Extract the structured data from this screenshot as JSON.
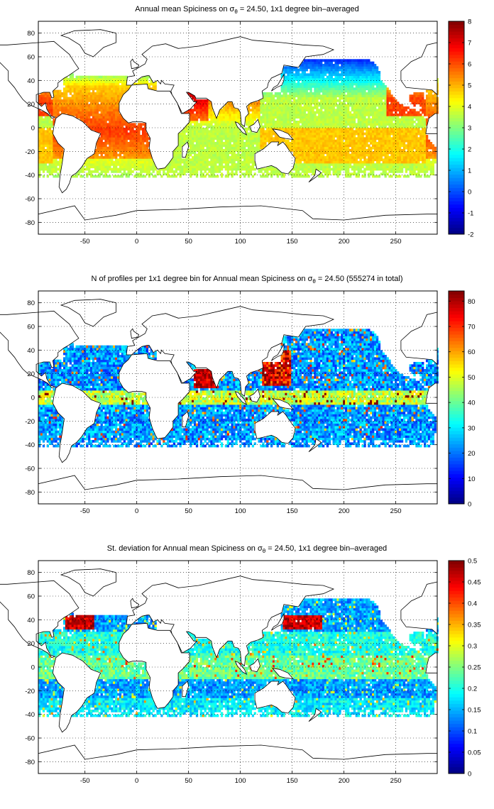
{
  "panels": [
    {
      "title_prefix": "Annual mean Spiciness on ",
      "sigma": "σ",
      "sigma_sub": "θ",
      "title_suffix": " = 24.50, 1x1 degree bin–averaged",
      "field": "spice",
      "colorbar": {
        "min": -2,
        "max": 8,
        "ticks": [
          "-2",
          "-1",
          "0",
          "1",
          "2",
          "3",
          "4",
          "5",
          "6",
          "7",
          "8"
        ]
      }
    },
    {
      "title_prefix": "N of profiles per 1x1 degree bin for Annual mean Spiciness on ",
      "sigma": "σ",
      "sigma_sub": "θ",
      "title_suffix": " = 24.50 (555274 in total)",
      "field": "count",
      "colorbar": {
        "min": 0,
        "max": 84,
        "ticks": [
          "0",
          "10",
          "20",
          "30",
          "40",
          "50",
          "60",
          "70",
          "80"
        ]
      }
    },
    {
      "title_prefix": "St. deviation for Annual mean Spiciness on ",
      "sigma": "σ",
      "sigma_sub": "θ",
      "title_suffix": " = 24.50, 1x1 degree bin–averaged",
      "field": "std",
      "colorbar": {
        "min": 0,
        "max": 0.5,
        "ticks": [
          "0",
          "0.05",
          "0.1",
          "0.15",
          "0.2",
          "0.25",
          "0.3",
          "0.35",
          "0.4",
          "0.45",
          "0.5"
        ]
      }
    }
  ],
  "map_axes": {
    "xlim": [
      -95,
      290
    ],
    "ylim": [
      -90,
      90
    ],
    "xticks": [
      "-50",
      "0",
      "50",
      "100",
      "150",
      "200",
      "250"
    ],
    "yticks": [
      "-80",
      "-60",
      "-40",
      "-20",
      "0",
      "20",
      "40",
      "60",
      "80"
    ],
    "grid": true,
    "colormap": "jet"
  }
}
